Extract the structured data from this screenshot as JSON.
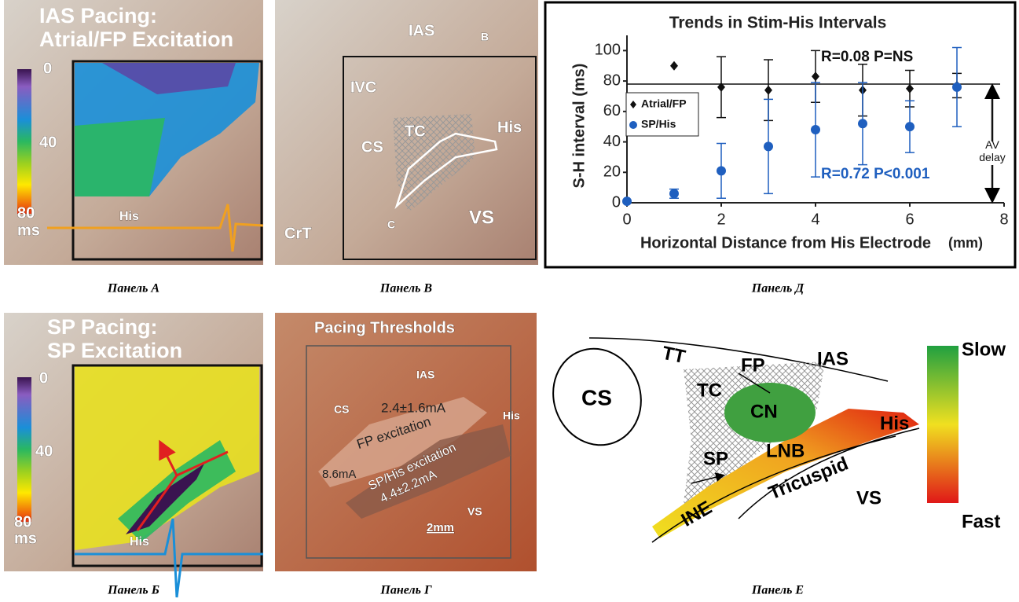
{
  "chart_data": {
    "type": "scatter",
    "title": "Trends in Stim-His Intervals",
    "x_label": "Horizontal Distance from His Electrode",
    "x_unit": "(mm)",
    "y_label": "S-H interval (ms)",
    "xlim": [
      0,
      8
    ],
    "xticks": [
      0,
      2,
      4,
      6,
      8
    ],
    "ylim": [
      0,
      110
    ],
    "yticks": [
      0,
      20,
      40,
      60,
      80,
      100
    ],
    "grid": false,
    "legend": "left",
    "series": [
      {
        "name": "Atrial/FP",
        "color": "#111111",
        "marker": "diamond",
        "x": [
          1,
          2,
          3,
          4,
          5,
          6,
          7
        ],
        "values": [
          90,
          76,
          74,
          83,
          74,
          75,
          77
        ],
        "errors": [
          0,
          20,
          20,
          17,
          17,
          12,
          8
        ]
      },
      {
        "name": "SP/His",
        "color": "#1f5fbf",
        "marker": "circle",
        "x": [
          0,
          1,
          2,
          3,
          4,
          5,
          6,
          7
        ],
        "values": [
          1,
          6,
          21,
          37,
          48,
          52,
          50,
          76
        ],
        "errors": [
          0,
          3,
          18,
          31,
          31,
          27,
          17,
          26
        ]
      }
    ],
    "reference_line": {
      "value": 78,
      "label": "AV delay"
    },
    "annotations": [
      "R=0.08 P=NS",
      "R=0.72 P<0.001"
    ]
  },
  "panels": {
    "a": {
      "caption": "Панель А",
      "title1": "IAS Pacing:",
      "title2": "Atrial/FP Excitation",
      "scale": [
        "0",
        "40",
        "80",
        "ms"
      ],
      "trace": "His"
    },
    "b": {
      "caption": "Панель В",
      "labels": [
        "IAS",
        "B",
        "IVC",
        "CS",
        "TC",
        "His",
        "C",
        "VS",
        "CrT"
      ]
    },
    "d": {
      "caption": "Панель Д"
    },
    "v": {
      "caption": "Панель Б",
      "title1": "SP Pacing:",
      "title2": "SP Excitation",
      "scale": [
        "0",
        "40",
        "80",
        "ms"
      ],
      "trace": "His"
    },
    "g": {
      "caption": "Панель Г",
      "title": "Pacing Thresholds",
      "labels": [
        "IAS",
        "CS",
        "His",
        "VS"
      ],
      "thresholds": [
        "2.4±1.6mA",
        "FP excitation",
        "8.6mA",
        "SP/His excitation",
        "4.4±2.2mA"
      ],
      "scale_bar": "2mm"
    },
    "e": {
      "caption": "Панель Е",
      "labels": [
        "TT",
        "FP",
        "IAS",
        "CS",
        "TC",
        "CN",
        "SP",
        "LNB",
        "His",
        "INE",
        "Tricuspid",
        "VS"
      ],
      "scale": [
        "Slow",
        "Fast"
      ]
    }
  }
}
